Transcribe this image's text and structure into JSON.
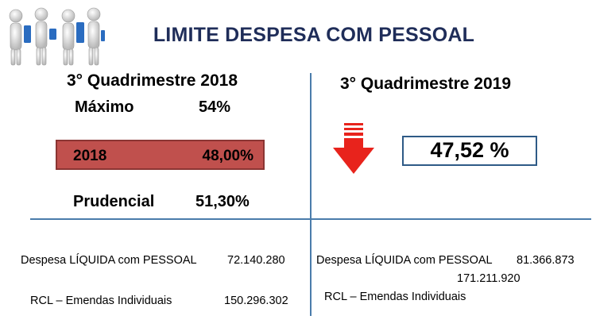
{
  "title": "LIMITE DESPESA COM PESSOAL",
  "left": {
    "heading": "3° Quadrimestre 2018",
    "maximo_label": "Máximo",
    "maximo_value": "54%",
    "year_label": "2018",
    "year_value": "48,00%",
    "prudencial_label": "Prudencial",
    "prudencial_value": "51,30%",
    "despesa_label": "Despesa LÍQUIDA com PESSOAL",
    "despesa_value": "72.140.280",
    "rcl_label": "RCL – Emendas Individuais",
    "rcl_value": "150.296.302"
  },
  "right": {
    "heading": "3° Quadrimestre 2019",
    "percent": "47,52 %",
    "despesa_label": "Despesa LÍQUIDA com PESSOAL",
    "despesa_value": "81.366.873",
    "rcl_value": "171.211.920",
    "rcl_label": "RCL – Emendas Individuais"
  },
  "colors": {
    "title": "#1f2d59",
    "box_2018_fill": "#c0504d",
    "arrow": "#e8231c",
    "divider": "#4a7cab"
  },
  "icons": {
    "figures": "people-figures-icon",
    "arrow": "down-arrow-icon"
  }
}
